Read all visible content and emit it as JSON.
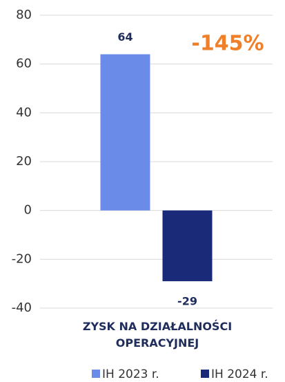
{
  "chart_data": {
    "type": "bar",
    "annotation": "-145%",
    "categories": [
      "ZYSK NA DZIAŁALNOŚCI OPERACYJNEJ"
    ],
    "series": [
      {
        "name": "IH 2023 r.",
        "color": "#6b8be8",
        "values": [
          64
        ]
      },
      {
        "name": "IH 2024 r.",
        "color": "#1a2a78",
        "values": [
          -29
        ]
      }
    ],
    "ylim": [
      -40,
      80
    ],
    "yticks": [
      -40,
      -20,
      0,
      20,
      40,
      60,
      80
    ],
    "grid": true,
    "legend": "bottom"
  }
}
